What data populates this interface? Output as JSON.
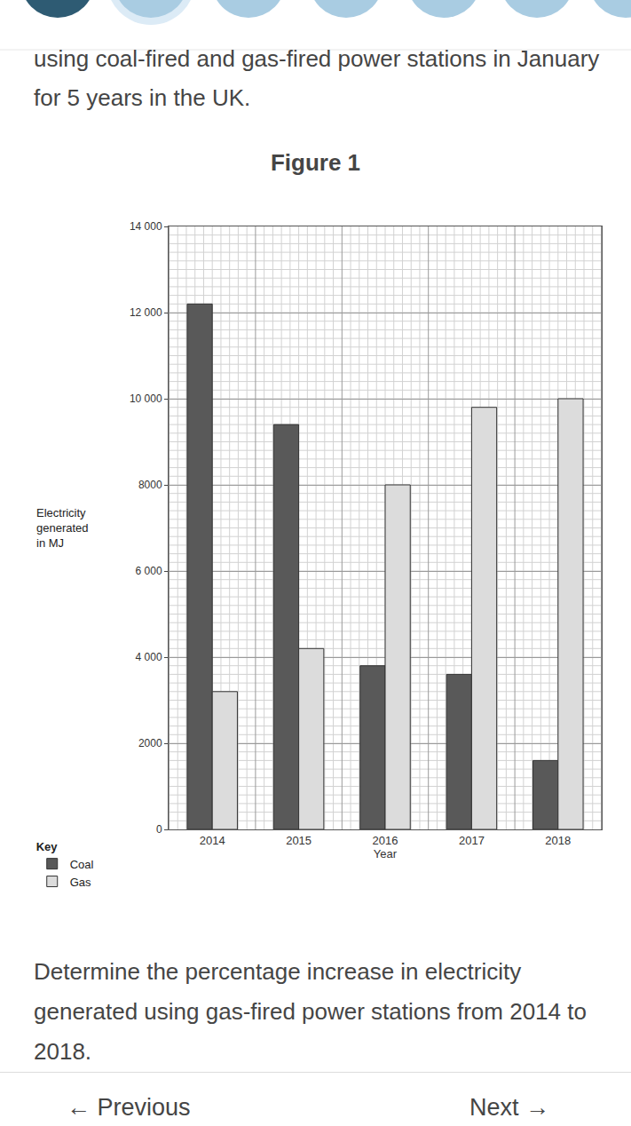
{
  "header_text": "using coal-fired and gas-fired power stations in January for 5 years in the UK.",
  "figure_label": "Figure 1",
  "question": "Determine the percentage increase in electricity generated using gas-fired power stations from 2014 to 2018.",
  "nav": {
    "previous": "← Previous",
    "next": "Next →"
  },
  "chart_data": {
    "type": "bar",
    "categories": [
      "2014",
      "2015",
      "2016",
      "2017",
      "2018"
    ],
    "series": [
      {
        "name": "Coal",
        "color": "#595959",
        "values": [
          12200,
          9400,
          3800,
          3600,
          1600
        ]
      },
      {
        "name": "Gas",
        "color": "#dcdcdc",
        "values": [
          3200,
          4200,
          8000,
          9800,
          10000
        ]
      }
    ],
    "x_label": "Year",
    "y_label": "Electricity\ngenerated\nin MJ",
    "legend_title": "Key",
    "legend": "bottom-left",
    "ylim": [
      0,
      14000
    ],
    "yticks": [
      0,
      2000,
      {
        "value": 4000,
        "label": "4 000"
      },
      {
        "value": 6000,
        "label": "6 000"
      },
      8000,
      {
        "value": 10000,
        "label": "10 000"
      },
      {
        "value": 12000,
        "label": "12 000"
      },
      {
        "value": 14000,
        "label": "14 000"
      }
    ],
    "grid": true
  }
}
